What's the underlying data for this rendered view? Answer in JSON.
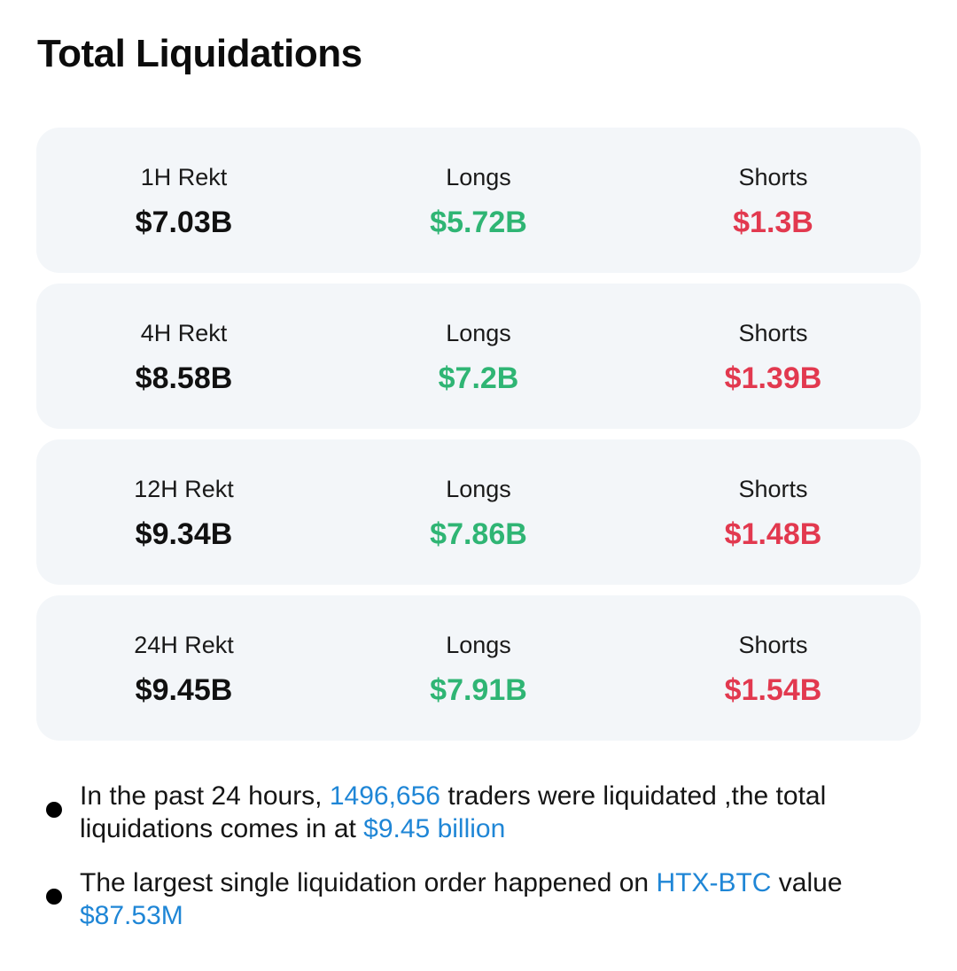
{
  "title": "Total Liquidations",
  "colors": {
    "long": "#2fb574",
    "short": "#e2394f",
    "link": "#1f86d6",
    "card_bg": "#f3f6f9"
  },
  "cards": [
    {
      "period_label": "1H Rekt",
      "total": "$7.03B",
      "longs_label": "Longs",
      "longs": "$5.72B",
      "shorts_label": "Shorts",
      "shorts": "$1.3B"
    },
    {
      "period_label": "4H Rekt",
      "total": "$8.58B",
      "longs_label": "Longs",
      "longs": "$7.2B",
      "shorts_label": "Shorts",
      "shorts": "$1.39B"
    },
    {
      "period_label": "12H Rekt",
      "total": "$9.34B",
      "longs_label": "Longs",
      "longs": "$7.86B",
      "shorts_label": "Shorts",
      "shorts": "$1.48B"
    },
    {
      "period_label": "24H Rekt",
      "total": "$9.45B",
      "longs_label": "Longs",
      "longs": "$7.91B",
      "shorts_label": "Shorts",
      "shorts": "$1.54B"
    }
  ],
  "summary": {
    "line1": {
      "prefix": "In the past 24 hours, ",
      "traders": "1496,656",
      "middle": " traders were liquidated ,the total liquidations comes in at ",
      "amount": "$9.45 billion"
    },
    "line2": {
      "prefix": "The largest single liquidation order happened on ",
      "pair": "HTX-BTC",
      "middle": " value ",
      "amount": "$87.53M"
    }
  }
}
